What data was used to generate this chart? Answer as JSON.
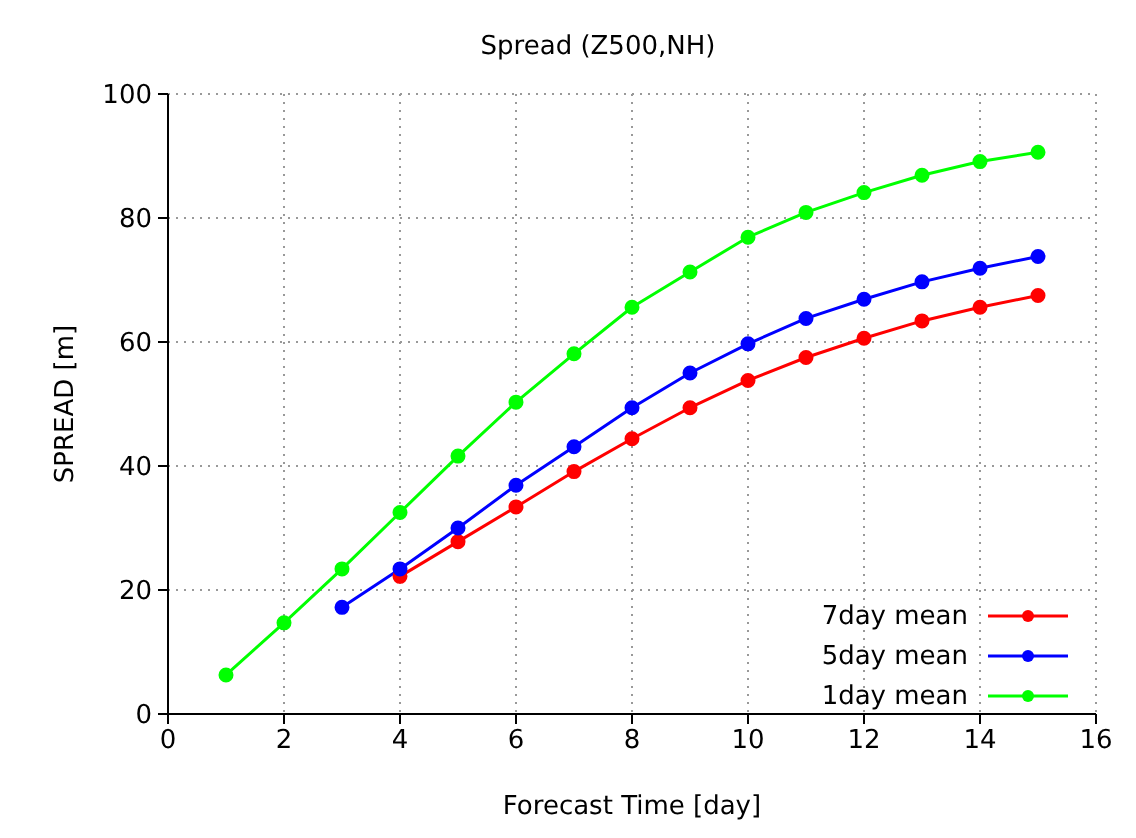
{
  "chart_data": {
    "type": "line",
    "title": "Spread (Z500,NH)",
    "xlabel": "Forecast Time [day]",
    "ylabel": "SPREAD [m]",
    "xlim": [
      0,
      16
    ],
    "xticks": [
      0,
      2,
      4,
      6,
      8,
      10,
      12,
      14,
      16
    ],
    "ylim": [
      0,
      100
    ],
    "yticks": [
      0,
      20,
      40,
      60,
      80,
      100
    ],
    "grid": true,
    "legend": "bottom right",
    "marker": "circle",
    "line_style": "solid",
    "series": [
      {
        "name": "7day mean",
        "color": "#ff0000",
        "x": [
          4,
          5,
          6,
          7,
          8,
          9,
          10,
          11,
          12,
          13,
          14,
          15
        ],
        "values": [
          22.2,
          27.8,
          33.4,
          39.1,
          44.4,
          49.4,
          53.8,
          57.5,
          60.6,
          63.4,
          65.6,
          67.5
        ]
      },
      {
        "name": "5day mean",
        "color": "#0000ff",
        "x": [
          3,
          4,
          5,
          6,
          7,
          8,
          9,
          10,
          11,
          12,
          13,
          14,
          15
        ],
        "values": [
          17.2,
          23.4,
          30,
          36.9,
          43.1,
          49.4,
          55,
          59.7,
          63.8,
          66.9,
          69.7,
          71.9,
          73.8
        ]
      },
      {
        "name": "1day mean",
        "color": "#00ff00",
        "x": [
          1,
          2,
          3,
          4,
          5,
          6,
          7,
          8,
          9,
          10,
          11,
          12,
          13,
          14,
          15
        ],
        "values": [
          6.3,
          14.7,
          23.4,
          32.5,
          41.6,
          50.3,
          58.1,
          65.6,
          71.3,
          76.9,
          80.9,
          84.1,
          86.9,
          89.1,
          90.6
        ]
      }
    ]
  }
}
